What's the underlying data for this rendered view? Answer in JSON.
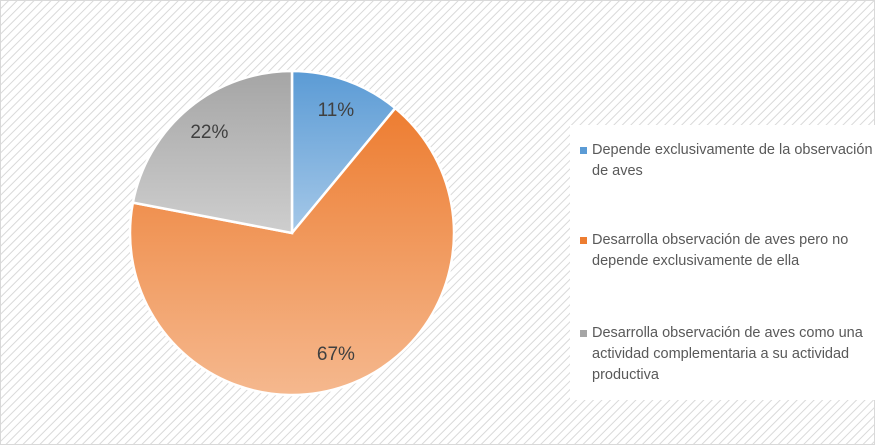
{
  "chart_data": {
    "type": "pie",
    "categories": [
      "Depende exclusivamente de la observación de aves",
      "Desarrolla observación de aves pero no depende exclusivamente de ella",
      "Desarrolla observación de aves como una actividad complementaria a su actividad productiva"
    ],
    "values": [
      11,
      67,
      22
    ],
    "value_labels": [
      "11%",
      "67%",
      "22%"
    ],
    "colors": [
      "#5b9bd5",
      "#ed7d31",
      "#a5a5a5"
    ],
    "legend": "right"
  }
}
